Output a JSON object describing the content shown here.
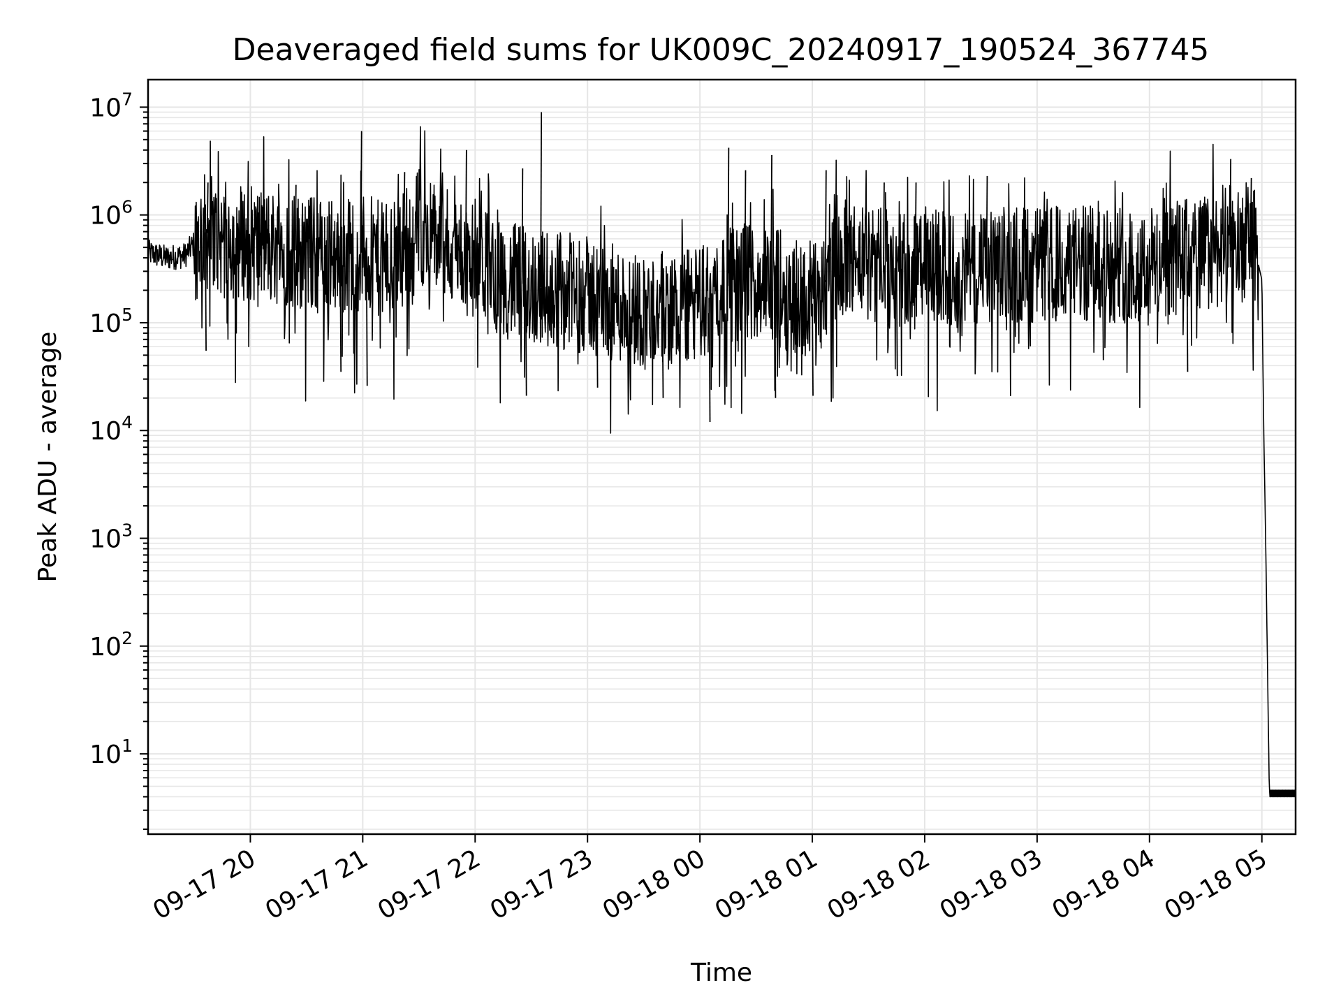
{
  "chart_data": {
    "type": "line",
    "title": "Deaveraged field sums for UK009C_20240917_190524_367745",
    "xlabel": "Time",
    "ylabel": "Peak ADU - average",
    "yscale": "log",
    "ylim": [
      1.8,
      18000000
    ],
    "xlim": [
      "2024-09-17 19:05:24",
      "2024-09-18 05:18:00"
    ],
    "grid": true,
    "line_color": "#000000",
    "grid_color": "#e6e6e6",
    "x_ticks": [
      {
        "value": "2024-09-17 20:00",
        "label": "09-17 20"
      },
      {
        "value": "2024-09-17 21:00",
        "label": "09-17 21"
      },
      {
        "value": "2024-09-17 22:00",
        "label": "09-17 22"
      },
      {
        "value": "2024-09-17 23:00",
        "label": "09-17 23"
      },
      {
        "value": "2024-09-18 00:00",
        "label": "09-18 00"
      },
      {
        "value": "2024-09-18 01:00",
        "label": "09-18 01"
      },
      {
        "value": "2024-09-18 02:00",
        "label": "09-18 02"
      },
      {
        "value": "2024-09-18 03:00",
        "label": "09-18 03"
      },
      {
        "value": "2024-09-18 04:00",
        "label": "09-18 04"
      },
      {
        "value": "2024-09-18 05:00",
        "label": "09-18 05"
      }
    ],
    "y_ticks": [
      {
        "value": 10,
        "base": "10",
        "exp": "1"
      },
      {
        "value": 100,
        "base": "10",
        "exp": "2"
      },
      {
        "value": 1000,
        "base": "10",
        "exp": "3"
      },
      {
        "value": 10000,
        "base": "10",
        "exp": "4"
      },
      {
        "value": 100000,
        "base": "10",
        "exp": "5"
      },
      {
        "value": 1000000,
        "base": "10",
        "exp": "6"
      },
      {
        "value": 10000000,
        "base": "10",
        "exp": "7"
      }
    ],
    "series": [
      {
        "x": [
          "2024-09-17 19:05",
          "2024-09-17 19:15",
          "2024-09-17 19:25",
          "2024-09-17 19:35",
          "2024-09-17 19:45",
          "2024-09-17 20:00",
          "2024-09-17 20:15",
          "2024-09-17 20:30",
          "2024-09-17 20:45",
          "2024-09-17 21:00",
          "2024-09-17 21:15",
          "2024-09-17 21:30",
          "2024-09-17 21:45",
          "2024-09-17 22:00",
          "2024-09-17 22:15",
          "2024-09-17 22:30",
          "2024-09-17 22:45",
          "2024-09-17 23:00",
          "2024-09-17 23:15",
          "2024-09-17 23:30",
          "2024-09-17 23:45",
          "2024-09-18 00:00",
          "2024-09-18 00:15",
          "2024-09-18 00:30",
          "2024-09-18 00:45",
          "2024-09-18 01:00",
          "2024-09-18 01:15",
          "2024-09-18 01:30",
          "2024-09-18 01:45",
          "2024-09-18 02:00",
          "2024-09-18 02:15",
          "2024-09-18 02:30",
          "2024-09-18 02:45",
          "2024-09-18 03:00",
          "2024-09-18 03:15",
          "2024-09-18 03:30",
          "2024-09-18 03:45",
          "2024-09-18 04:00",
          "2024-09-18 04:15",
          "2024-09-18 04:30",
          "2024-09-18 04:45",
          "2024-09-18 04:55",
          "2024-09-18 05:00",
          "2024-09-18 05:01",
          "2024-09-18 05:02",
          "2024-09-18 05:04",
          "2024-09-18 05:18"
        ],
        "y": [
          450000,
          400000,
          420000,
          700000,
          600000,
          550000,
          500000,
          450000,
          400000,
          450000,
          350000,
          800000,
          500000,
          400000,
          250000,
          220000,
          200000,
          180000,
          150000,
          130000,
          130000,
          150000,
          220000,
          250000,
          200000,
          150000,
          400000,
          350000,
          300000,
          350000,
          300000,
          300000,
          350000,
          350000,
          350000,
          350000,
          350000,
          350000,
          400000,
          450000,
          550000,
          600000,
          250000,
          10000,
          1000,
          4,
          4
        ],
        "spikes_up": [
          [
            "2024-09-17 20:59",
            6000000
          ],
          [
            "2024-09-17 21:55",
            4000000
          ],
          [
            "2024-09-17 22:35",
            9000000
          ],
          [
            "2024-09-17 22:25",
            2700000
          ],
          [
            "2024-09-18 00:15",
            4200000
          ],
          [
            "2024-09-18 00:38",
            3600000
          ],
          [
            "2024-09-17 21:22",
            2500000
          ],
          [
            "2024-09-18 04:43",
            3300000
          ],
          [
            "2024-09-18 04:54",
            2200000
          ],
          [
            "2024-09-18 02:33",
            2300000
          ],
          [
            "2024-09-17 19:37",
            2000000
          ],
          [
            "2024-09-18 01:07",
            2600000
          ],
          [
            "2024-09-18 01:55",
            2000000
          ],
          [
            "2024-09-18 01:38",
            2000000
          ],
          [
            "2024-09-18 00:24",
            2600000
          ],
          [
            "2024-09-17 20:24",
            1900000
          ]
        ],
        "spikes_down": [
          [
            "2024-09-18 00:05",
            12000
          ],
          [
            "2024-09-17 22:27",
            21000
          ],
          [
            "2024-09-17 21:02",
            26000
          ],
          [
            "2024-09-18 00:40",
            20000
          ],
          [
            "2024-09-18 01:00",
            21000
          ],
          [
            "2024-09-17 23:40",
            20000
          ],
          [
            "2024-09-17 19:36",
            55000
          ],
          [
            "2024-09-17 20:48",
            35000
          ],
          [
            "2024-09-18 01:45",
            32000
          ],
          [
            "2024-09-18 03:35",
            45000
          ],
          [
            "2024-09-18 04:20",
            35000
          ],
          [
            "2024-09-17 23:05",
            25000
          ]
        ]
      }
    ]
  }
}
